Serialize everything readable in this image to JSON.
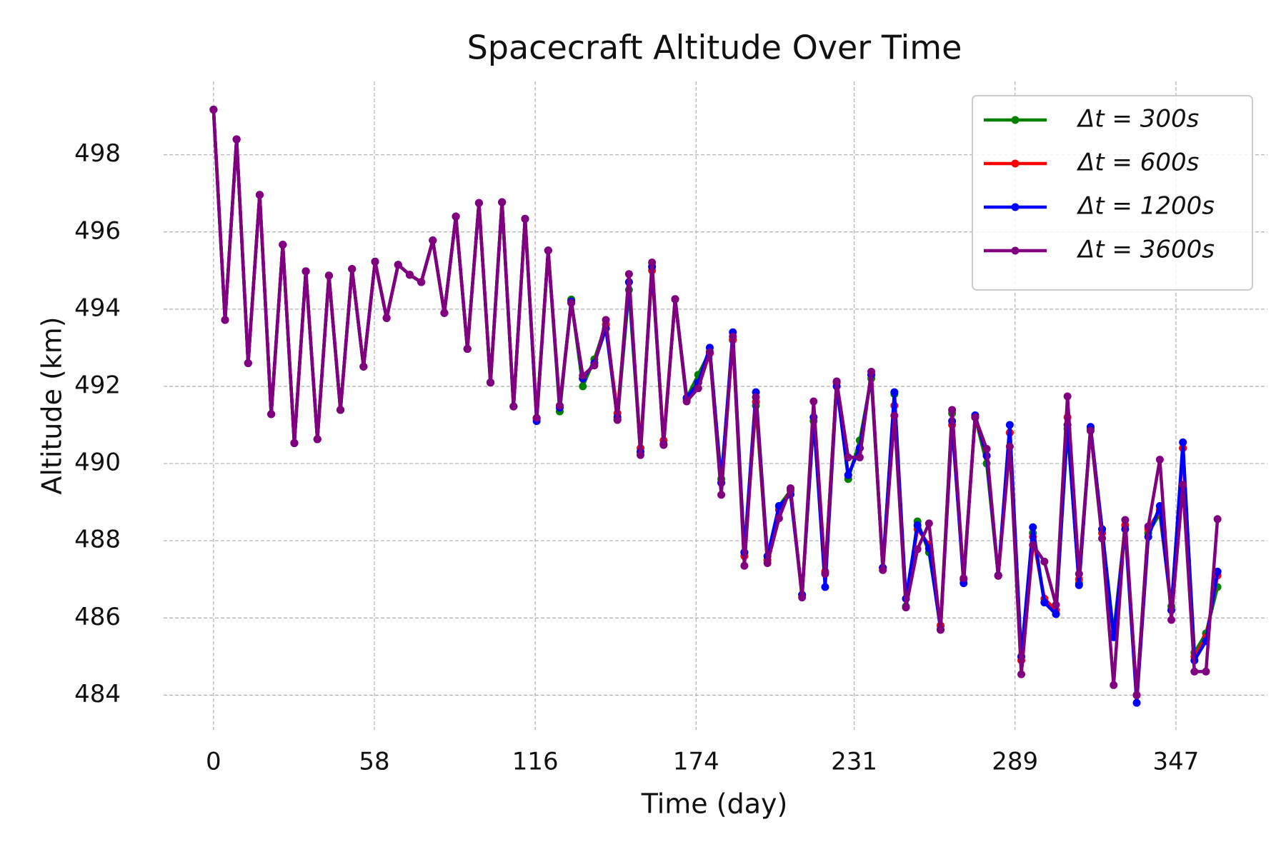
{
  "chart_data": {
    "type": "line",
    "title": "Spacecraft Altitude Over Time",
    "x_label": "Time (day)",
    "y_label": "Altitude (km)",
    "xlim": [
      -18,
      380
    ],
    "ylim": [
      483.1,
      499.9
    ],
    "xticks": [
      0,
      58,
      116,
      174,
      231,
      289,
      347
    ],
    "yticks": [
      484,
      486,
      488,
      490,
      492,
      494,
      496,
      498
    ],
    "grid": true,
    "legend": "upper right",
    "x": [
      0,
      4.16,
      8.32,
      12.48,
      16.64,
      20.8,
      24.97,
      29.13,
      33.29,
      37.45,
      41.61,
      45.77,
      49.93,
      54.09,
      58.25,
      62.41,
      66.57,
      70.74,
      74.9,
      79.06,
      83.22,
      87.38,
      91.54,
      95.7,
      99.86,
      104.02,
      108.18,
      112.34,
      116.51,
      120.67,
      124.83,
      128.99,
      133.15,
      137.31,
      141.47,
      145.63,
      149.79,
      153.95,
      158.11,
      162.28,
      166.44,
      170.6,
      174.76,
      178.92,
      183.08,
      187.24,
      191.4,
      195.56,
      199.72,
      203.89,
      208.05,
      212.21,
      216.37,
      220.53,
      224.69,
      228.85,
      233.01,
      237.17,
      241.33,
      245.49,
      249.66,
      253.82,
      257.98,
      262.14,
      266.3,
      270.46,
      274.62,
      278.78,
      282.94,
      287.1,
      291.26,
      295.43,
      299.59,
      303.75,
      307.91,
      312.07,
      316.23,
      320.39,
      324.55,
      328.71,
      332.87,
      337.03,
      341.2,
      345.36,
      349.52,
      353.68,
      357.84,
      362
    ],
    "series": [
      {
        "name": "Δt = 300s",
        "color": "#008000",
        "values": [
          499.17,
          493.72,
          498.4,
          492.6,
          496.96,
          491.28,
          495.67,
          490.53,
          494.98,
          490.63,
          494.87,
          491.39,
          495.04,
          492.51,
          495.23,
          493.77,
          495.15,
          494.89,
          494.7,
          495.78,
          493.9,
          496.4,
          492.97,
          496.75,
          492.1,
          496.77,
          491.48,
          496.34,
          491.18,
          495.52,
          491.35,
          494.25,
          492.0,
          492.7,
          493.6,
          491.13,
          494.5,
          490.3,
          495.1,
          490.5,
          494.26,
          491.7,
          492.3,
          492.9,
          489.6,
          493.2,
          487.7,
          491.5,
          487.5,
          488.9,
          489.3,
          486.6,
          491.1,
          487.2,
          492.1,
          489.6,
          490.6,
          492.2,
          487.3,
          491.8,
          486.3,
          488.5,
          487.7,
          485.8,
          491.3,
          487.0,
          491.2,
          490.0,
          487.1,
          490.8,
          485.0,
          488.2,
          486.4,
          486.1,
          490.9,
          486.9,
          490.9,
          488.3,
          485.6,
          488.4,
          484.0,
          488.2,
          488.7,
          486.3,
          490.4,
          485.1,
          485.6,
          486.8
        ]
      },
      {
        "name": "Δt = 600s",
        "color": "#ff0000",
        "values": [
          499.17,
          493.72,
          498.4,
          492.6,
          496.96,
          491.28,
          495.67,
          490.53,
          494.98,
          490.63,
          494.87,
          491.39,
          495.04,
          492.51,
          495.23,
          493.77,
          495.15,
          494.89,
          494.7,
          495.78,
          493.9,
          496.4,
          492.97,
          496.75,
          492.1,
          496.77,
          491.48,
          496.34,
          491.15,
          495.52,
          491.45,
          494.2,
          492.2,
          492.6,
          493.6,
          491.3,
          494.7,
          490.4,
          495.0,
          490.6,
          494.26,
          491.65,
          492.1,
          492.85,
          489.5,
          493.2,
          487.6,
          491.6,
          487.5,
          488.8,
          489.3,
          486.6,
          491.2,
          487.2,
          492.1,
          489.7,
          490.4,
          492.3,
          487.3,
          491.5,
          486.5,
          488.3,
          487.9,
          485.8,
          491.0,
          487.0,
          491.2,
          490.2,
          487.1,
          490.8,
          484.9,
          488.1,
          486.5,
          486.2,
          491.2,
          487.0,
          490.9,
          488.2,
          485.5,
          488.4,
          484.0,
          488.3,
          488.8,
          486.2,
          490.4,
          485.0,
          485.5,
          487.1
        ]
      },
      {
        "name": "Δt = 1200s",
        "color": "#0000ff",
        "values": [
          499.17,
          493.72,
          498.4,
          492.6,
          496.96,
          491.28,
          495.67,
          490.53,
          494.98,
          490.63,
          494.87,
          491.39,
          495.04,
          492.51,
          495.23,
          493.77,
          495.15,
          494.89,
          494.7,
          495.78,
          493.9,
          496.4,
          492.97,
          496.75,
          492.1,
          496.77,
          491.48,
          496.34,
          491.1,
          495.52,
          491.45,
          494.2,
          492.2,
          492.6,
          493.5,
          491.2,
          494.7,
          490.3,
          495.1,
          490.5,
          494.26,
          491.7,
          492.1,
          493.0,
          489.5,
          493.4,
          487.7,
          491.85,
          487.6,
          488.9,
          489.2,
          486.6,
          491.2,
          486.8,
          492.0,
          489.7,
          490.4,
          492.3,
          487.3,
          491.85,
          486.5,
          488.4,
          487.8,
          485.7,
          491.1,
          486.9,
          491.25,
          490.2,
          487.1,
          491.0,
          485.0,
          488.35,
          486.4,
          486.1,
          491.0,
          486.85,
          490.95,
          488.3,
          485.5,
          488.3,
          483.8,
          488.1,
          488.9,
          486.2,
          490.55,
          484.9,
          485.4,
          487.2
        ]
      },
      {
        "name": "Δt = 3600s",
        "color": "#800080",
        "values": [
          499.17,
          493.72,
          498.4,
          492.6,
          496.96,
          491.28,
          495.67,
          490.53,
          494.98,
          490.63,
          494.87,
          491.39,
          495.04,
          492.51,
          495.23,
          493.77,
          495.15,
          494.89,
          494.7,
          495.78,
          493.9,
          496.4,
          492.97,
          496.75,
          492.1,
          496.77,
          491.48,
          496.34,
          491.18,
          495.52,
          491.5,
          494.16,
          492.28,
          492.54,
          493.72,
          491.13,
          494.91,
          490.22,
          495.21,
          490.48,
          494.26,
          491.61,
          491.95,
          492.88,
          489.19,
          493.29,
          487.35,
          491.72,
          487.42,
          488.58,
          489.36,
          486.53,
          491.61,
          487.14,
          492.13,
          490.16,
          490.16,
          492.38,
          487.24,
          491.24,
          486.27,
          487.78,
          488.45,
          485.69,
          491.39,
          487.03,
          491.2,
          490.38,
          487.09,
          490.44,
          484.54,
          487.89,
          487.46,
          486.34,
          491.74,
          487.14,
          490.85,
          488.06,
          484.26,
          488.54,
          484.0,
          488.37,
          490.1,
          485.95,
          489.45,
          484.61,
          484.61,
          488.56
        ]
      }
    ]
  }
}
